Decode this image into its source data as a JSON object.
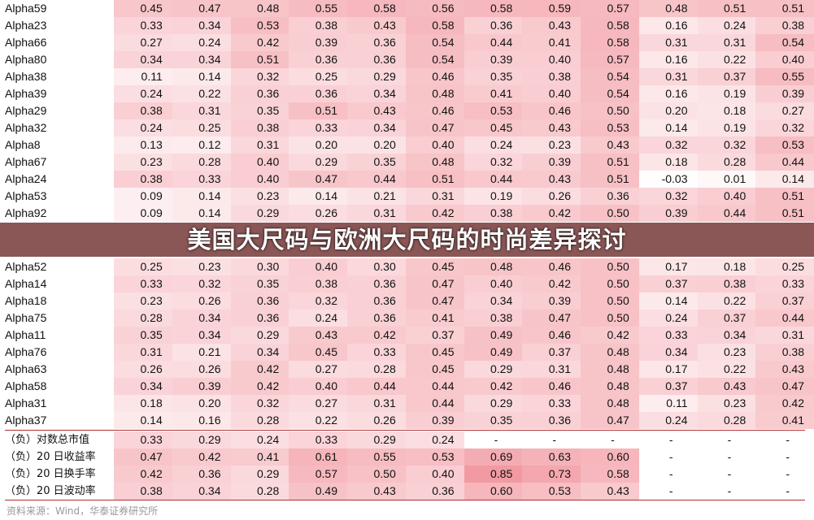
{
  "title": "美国大尺码与欧洲大尺码的时尚差异探讨",
  "source": "资料来源：Wind，华泰证券研究所",
  "chart_data": {
    "type": "heatmap",
    "color_scale": {
      "low": "#ffffff",
      "high": "#f29aa2"
    },
    "rows": [
      {
        "label": "Alpha59",
        "values": [
          0.45,
          0.47,
          0.48,
          0.55,
          0.58,
          0.56,
          0.58,
          0.59,
          0.57,
          0.48,
          0.51,
          0.51
        ]
      },
      {
        "label": "Alpha23",
        "values": [
          0.33,
          0.34,
          0.53,
          0.38,
          0.43,
          0.58,
          0.36,
          0.43,
          0.58,
          0.16,
          0.24,
          0.38
        ]
      },
      {
        "label": "Alpha66",
        "values": [
          0.27,
          0.24,
          0.42,
          0.39,
          0.36,
          0.54,
          0.44,
          0.41,
          0.58,
          0.31,
          0.31,
          0.54
        ]
      },
      {
        "label": "Alpha80",
        "values": [
          0.34,
          0.34,
          0.51,
          0.36,
          0.36,
          0.54,
          0.39,
          0.4,
          0.57,
          0.16,
          0.22,
          0.4
        ]
      },
      {
        "label": "Alpha38",
        "values": [
          0.11,
          0.14,
          0.32,
          0.25,
          0.29,
          0.46,
          0.35,
          0.38,
          0.54,
          0.31,
          0.37,
          0.55
        ]
      },
      {
        "label": "Alpha39",
        "values": [
          0.24,
          0.22,
          0.36,
          0.36,
          0.34,
          0.48,
          0.41,
          0.4,
          0.54,
          0.16,
          0.19,
          0.39
        ]
      },
      {
        "label": "Alpha29",
        "values": [
          0.38,
          0.31,
          0.35,
          0.51,
          0.43,
          0.46,
          0.53,
          0.46,
          0.5,
          0.2,
          0.18,
          0.27
        ]
      },
      {
        "label": "Alpha32",
        "values": [
          0.24,
          0.25,
          0.38,
          0.33,
          0.34,
          0.47,
          0.45,
          0.43,
          0.53,
          0.14,
          0.19,
          0.32
        ]
      },
      {
        "label": "Alpha8",
        "values": [
          0.13,
          0.12,
          0.31,
          0.2,
          0.2,
          0.4,
          0.24,
          0.23,
          0.43,
          0.32,
          0.32,
          0.53
        ]
      },
      {
        "label": "Alpha67",
        "values": [
          0.23,
          0.28,
          0.4,
          0.29,
          0.35,
          0.48,
          0.32,
          0.39,
          0.51,
          0.18,
          0.28,
          0.44
        ]
      },
      {
        "label": "Alpha24",
        "values": [
          0.38,
          0.33,
          0.4,
          0.47,
          0.44,
          0.51,
          0.44,
          0.43,
          0.51,
          -0.03,
          0.01,
          0.14
        ]
      },
      {
        "label": "Alpha53",
        "values": [
          0.09,
          0.14,
          0.23,
          0.14,
          0.21,
          0.31,
          0.19,
          0.26,
          0.36,
          0.32,
          0.4,
          0.51
        ]
      },
      {
        "label": "Alpha92",
        "values": [
          0.09,
          0.14,
          0.29,
          0.26,
          0.31,
          0.42,
          0.38,
          0.42,
          0.5,
          0.39,
          0.44,
          0.51
        ]
      },
      {
        "label": "Alpha52",
        "values": [
          0.25,
          0.23,
          0.3,
          0.4,
          0.3,
          0.45,
          0.48,
          0.46,
          0.5,
          0.17,
          0.18,
          0.25
        ]
      },
      {
        "label": "Alpha14",
        "values": [
          0.33,
          0.32,
          0.35,
          0.38,
          0.36,
          0.47,
          0.4,
          0.42,
          0.5,
          0.37,
          0.38,
          0.33
        ]
      },
      {
        "label": "Alpha18",
        "values": [
          0.23,
          0.26,
          0.36,
          0.32,
          0.36,
          0.47,
          0.34,
          0.39,
          0.5,
          0.14,
          0.22,
          0.37
        ]
      },
      {
        "label": "Alpha75",
        "values": [
          0.28,
          0.34,
          0.36,
          0.24,
          0.36,
          0.41,
          0.38,
          0.47,
          0.5,
          0.24,
          0.37,
          0.44
        ]
      },
      {
        "label": "Alpha11",
        "values": [
          0.35,
          0.34,
          0.29,
          0.43,
          0.42,
          0.37,
          0.49,
          0.46,
          0.42,
          0.33,
          0.34,
          0.31
        ]
      },
      {
        "label": "Alpha76",
        "values": [
          0.31,
          0.21,
          0.34,
          0.45,
          0.33,
          0.45,
          0.49,
          0.37,
          0.48,
          0.34,
          0.23,
          0.38
        ]
      },
      {
        "label": "Alpha63",
        "values": [
          0.26,
          0.26,
          0.42,
          0.27,
          0.28,
          0.45,
          0.29,
          0.31,
          0.48,
          0.17,
          0.22,
          0.43
        ]
      },
      {
        "label": "Alpha58",
        "values": [
          0.34,
          0.39,
          0.42,
          0.4,
          0.44,
          0.44,
          0.42,
          0.46,
          0.48,
          0.37,
          0.43,
          0.47
        ]
      },
      {
        "label": "Alpha31",
        "values": [
          0.18,
          0.2,
          0.32,
          0.27,
          0.31,
          0.44,
          0.29,
          0.33,
          0.48,
          0.11,
          0.23,
          0.42
        ]
      },
      {
        "label": "Alpha37",
        "values": [
          0.14,
          0.16,
          0.28,
          0.22,
          0.26,
          0.39,
          0.35,
          0.36,
          0.47,
          0.24,
          0.28,
          0.41
        ]
      }
    ],
    "factor_rows": [
      {
        "label": "（负）对数总市值",
        "values": [
          0.33,
          0.29,
          0.24,
          0.33,
          0.29,
          0.24,
          "-",
          "-",
          "-",
          "-",
          "-",
          "-"
        ]
      },
      {
        "label": "（负）20 日收益率",
        "values": [
          0.47,
          0.42,
          0.41,
          0.61,
          0.55,
          0.53,
          0.69,
          0.63,
          0.6,
          "-",
          "-",
          "-"
        ]
      },
      {
        "label": "（负）20 日换手率",
        "values": [
          0.42,
          0.36,
          0.29,
          0.57,
          0.5,
          0.4,
          0.85,
          0.73,
          0.58,
          "-",
          "-",
          "-"
        ]
      },
      {
        "label": "（负）20 日波动率",
        "values": [
          0.38,
          0.34,
          0.28,
          0.49,
          0.43,
          0.36,
          0.6,
          0.53,
          0.43,
          "-",
          "-",
          "-"
        ]
      }
    ]
  }
}
